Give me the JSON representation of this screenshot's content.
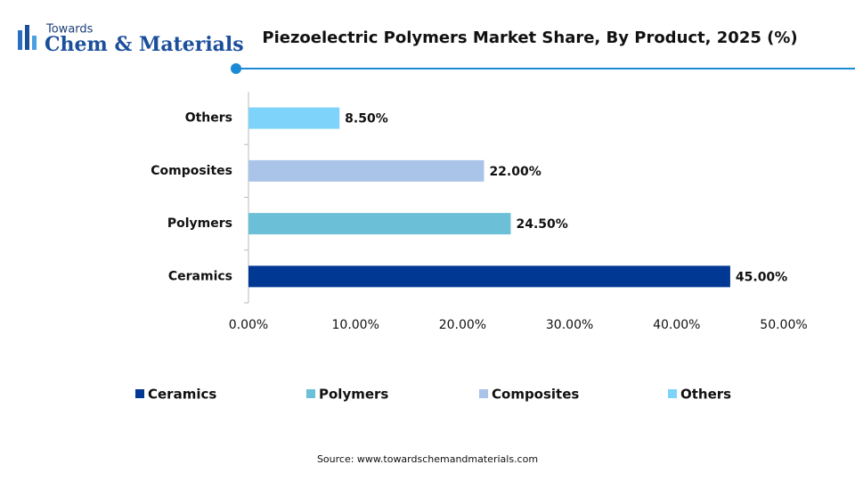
{
  "logo": {
    "line1": "Towards",
    "line2": "Chem & Materials"
  },
  "chart_data": {
    "type": "hbar",
    "title": "Piezoelectric Polymers Market Share, By Product, 2025 (%)",
    "categories": [
      "Ceramics",
      "Polymers",
      "Composites",
      "Others"
    ],
    "values": [
      45,
      24.5,
      22,
      8.5
    ],
    "value_labels": [
      "45.00%",
      "24.50%",
      "22.00%",
      "8.50%"
    ],
    "colors": [
      "#003893",
      "#6bbfd6",
      "#a9c4e8",
      "#7dd3fa"
    ],
    "xlim": [
      0,
      50
    ],
    "xticks": [
      {
        "value": 0,
        "label": "0.00%"
      },
      {
        "value": 10,
        "label": "10.00%"
      },
      {
        "value": 20,
        "label": "20.00%"
      },
      {
        "value": 30,
        "label": "30.00%"
      },
      {
        "value": 40,
        "label": "40.00%"
      },
      {
        "value": 50,
        "label": "50.00%"
      }
    ],
    "grid": false,
    "legend": "bottom",
    "source": "Source: www.towardschemandmaterials.com"
  }
}
